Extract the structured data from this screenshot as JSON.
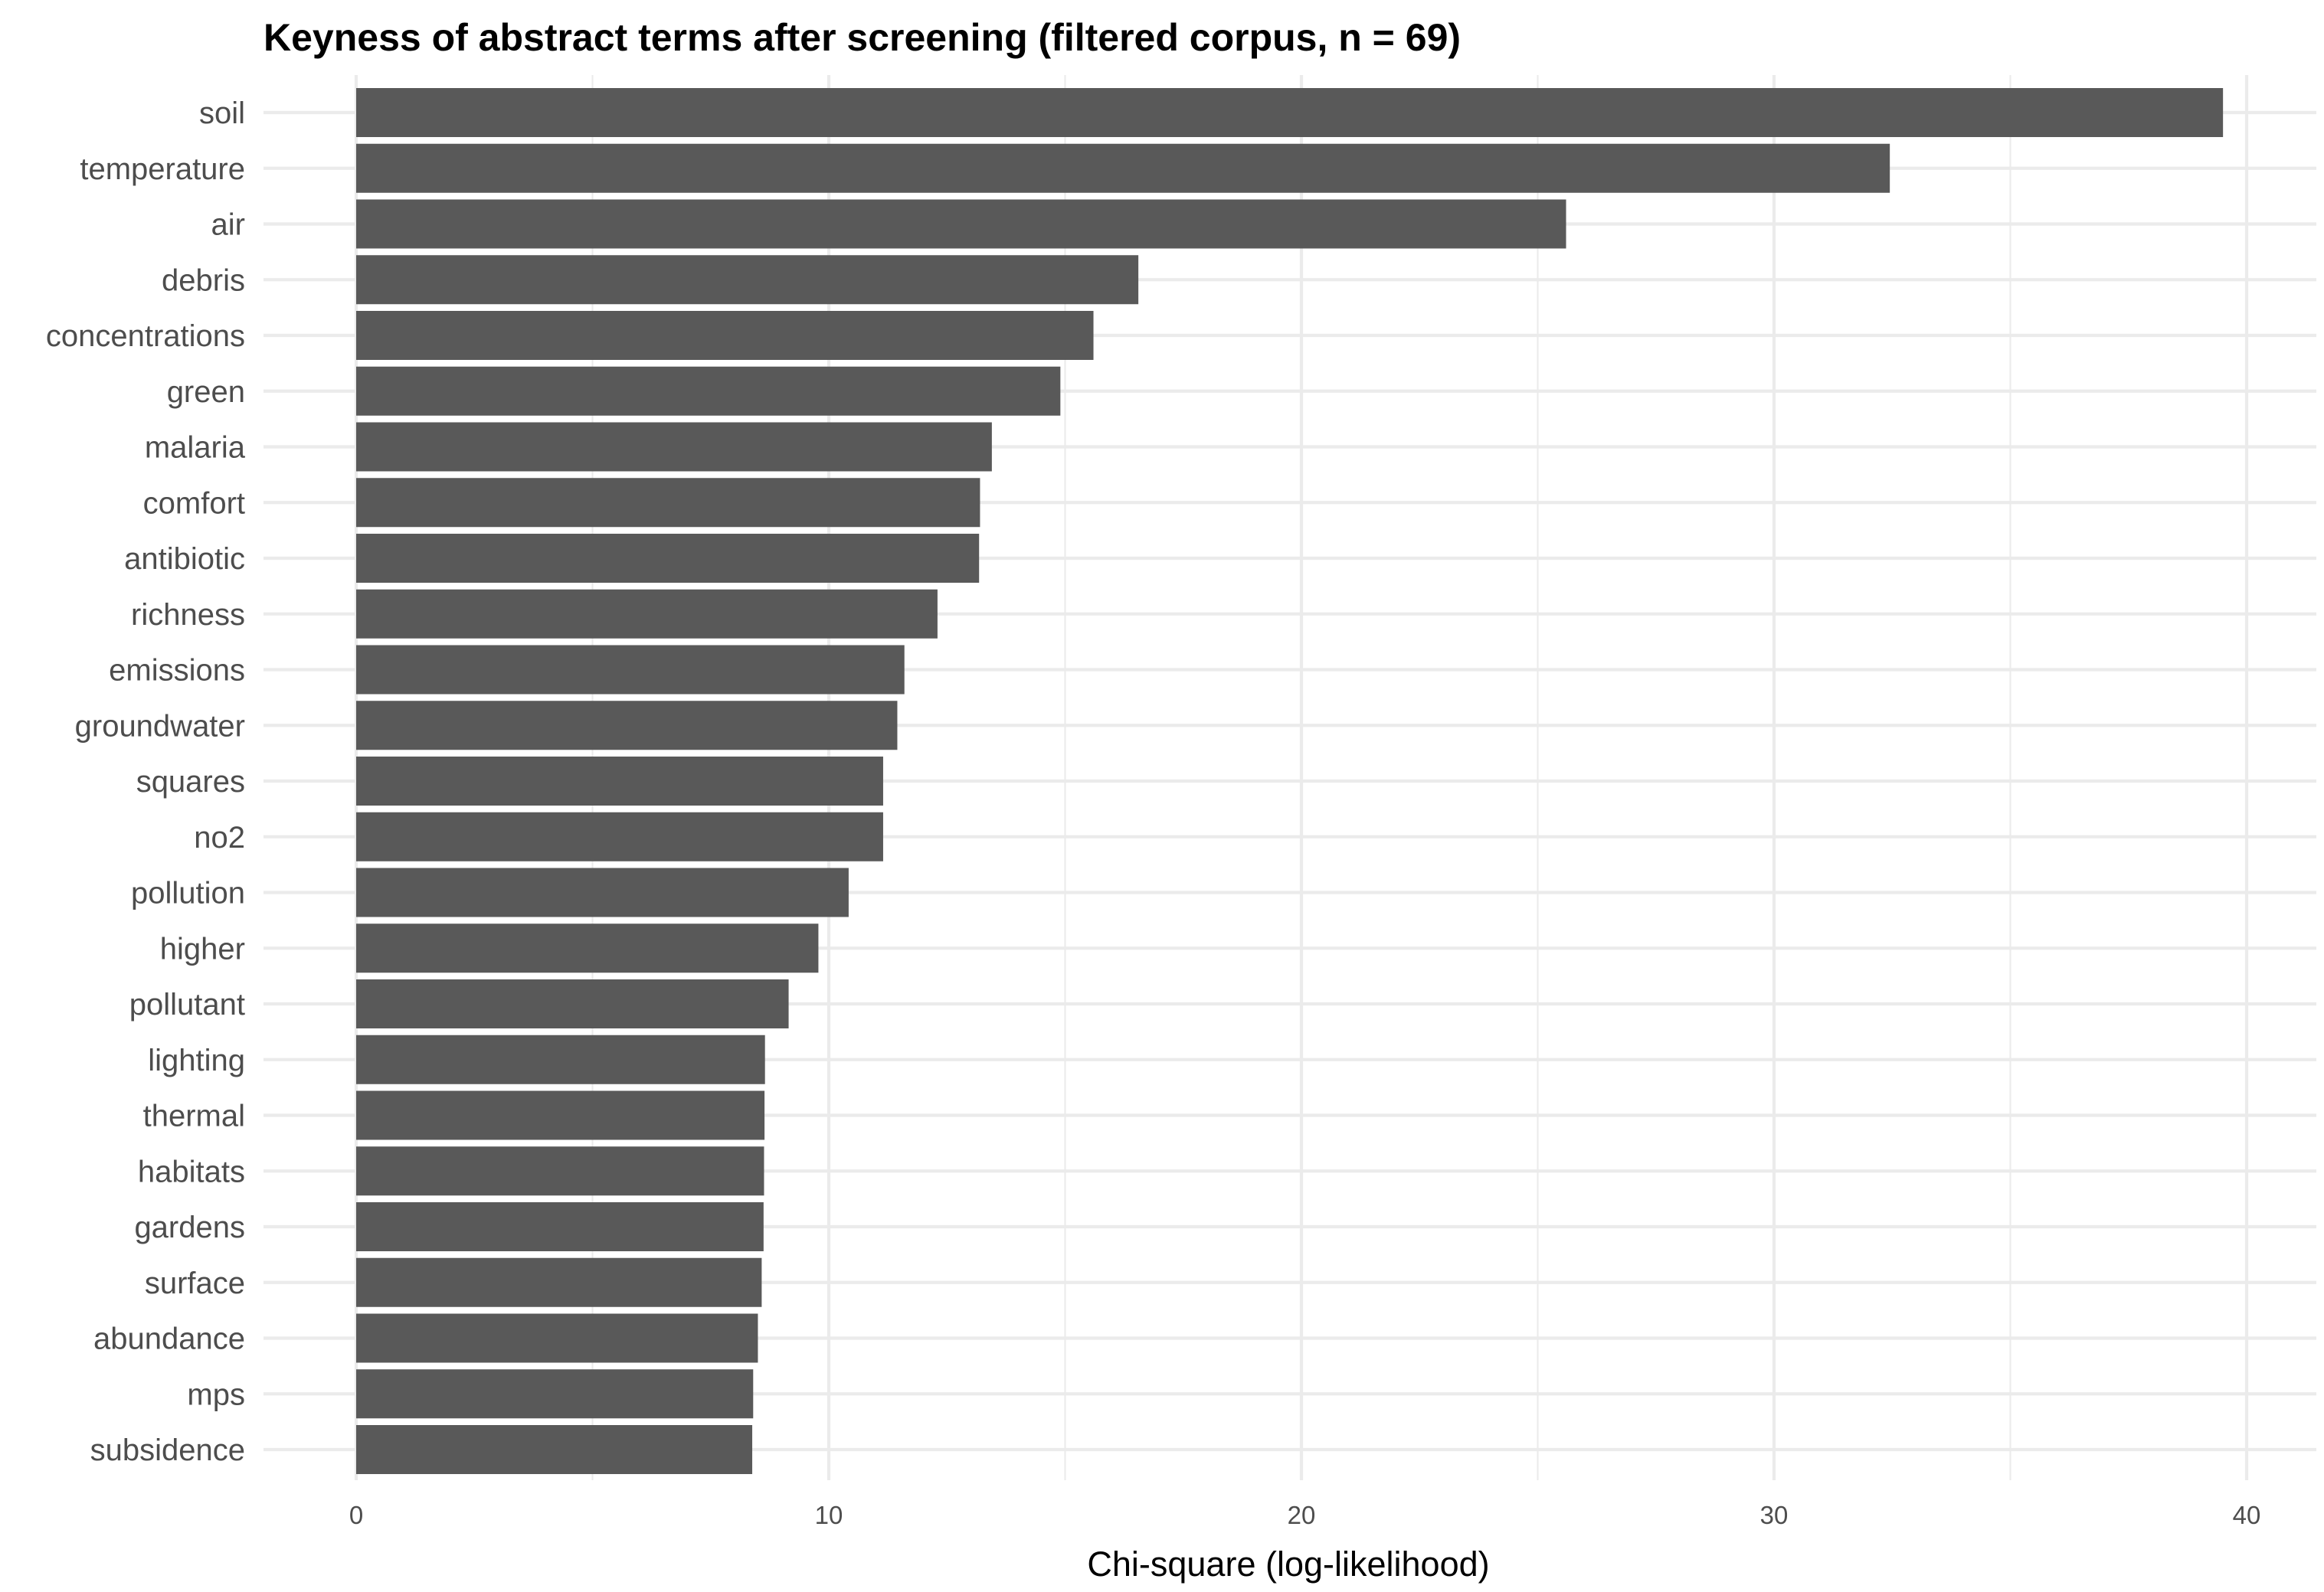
{
  "chart_data": {
    "type": "bar",
    "orientation": "horizontal",
    "title": "Keyness of abstract terms after screening (filtered corpus, n = 69)",
    "xlabel": "Chi-square (log-likelihood)",
    "ylabel": "",
    "xlim": [
      -2,
      41
    ],
    "xticks": [
      0,
      10,
      20,
      30,
      40
    ],
    "grid": true,
    "bar_color": "#595959",
    "grid_color": "#ebebeb",
    "categories": [
      "soil",
      "temperature",
      "air",
      "debris",
      "concentrations",
      "green",
      "malaria",
      "comfort",
      "antibiotic",
      "richness",
      "emissions",
      "groundwater",
      "squares",
      "no2",
      "pollution",
      "higher",
      "pollutant",
      "lighting",
      "thermal",
      "habitats",
      "gardens",
      "surface",
      "abundance",
      "mps",
      "subsidence"
    ],
    "values": [
      39.5,
      32.45,
      25.6,
      16.55,
      15.6,
      14.9,
      13.45,
      13.2,
      13.18,
      12.3,
      11.6,
      11.45,
      11.15,
      11.15,
      10.42,
      9.78,
      9.15,
      8.65,
      8.64,
      8.63,
      8.62,
      8.58,
      8.5,
      8.4,
      8.38
    ]
  }
}
